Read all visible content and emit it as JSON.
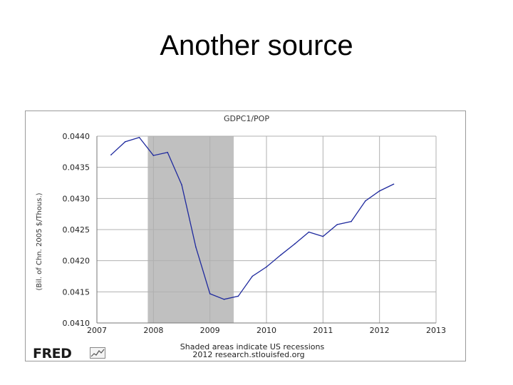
{
  "slide": {
    "title": "Another source"
  },
  "branding": {
    "logo": "FRED",
    "logo_icon": "mini-chart-icon"
  },
  "chart_data": {
    "type": "line",
    "title": "GDPC1/POP",
    "ylabel": "(Bil. of Chn. 2005 $/Thous.)",
    "xlabel": "",
    "footnote": "Shaded areas indicate US recessions",
    "source": "2012 research.stlouisfed.org",
    "xlim": [
      2007,
      2013
    ],
    "ylim": [
      0.041,
      0.044
    ],
    "x_ticks": [
      2007,
      2008,
      2009,
      2010,
      2011,
      2012,
      2013
    ],
    "x_tick_labels": [
      "2007",
      "2008",
      "2009",
      "2010",
      "2011",
      "2012",
      "2013"
    ],
    "y_ticks": [
      0.041,
      0.0415,
      0.042,
      0.0425,
      0.043,
      0.0435,
      0.044
    ],
    "y_tick_labels": [
      "0.0410",
      "0.0415",
      "0.0420",
      "0.0425",
      "0.0430",
      "0.0435",
      "0.0440"
    ],
    "grid": true,
    "recession": {
      "start": 2007.9,
      "end": 2009.42
    },
    "series": [
      {
        "color": "#1f2a9e",
        "x": [
          2007.25,
          2007.5,
          2007.75,
          2008.0,
          2008.25,
          2008.5,
          2008.75,
          2009.0,
          2009.25,
          2009.5,
          2009.75,
          2010.0,
          2010.25,
          2010.5,
          2010.75,
          2011.0,
          2011.25,
          2011.5,
          2011.75,
          2012.0,
          2012.25
        ],
        "values": [
          0.0437,
          0.04391,
          0.04398,
          0.04369,
          0.04374,
          0.04322,
          0.04222,
          0.04147,
          0.04138,
          0.04143,
          0.04175,
          0.0419,
          0.04209,
          0.04227,
          0.04246,
          0.04239,
          0.04258,
          0.04263,
          0.04296,
          0.04312,
          0.04323
        ]
      }
    ],
    "colors": {
      "recession_shade": "#c0c0c0",
      "grid": "#b0b0b0",
      "line": "#1f2a9e"
    }
  }
}
